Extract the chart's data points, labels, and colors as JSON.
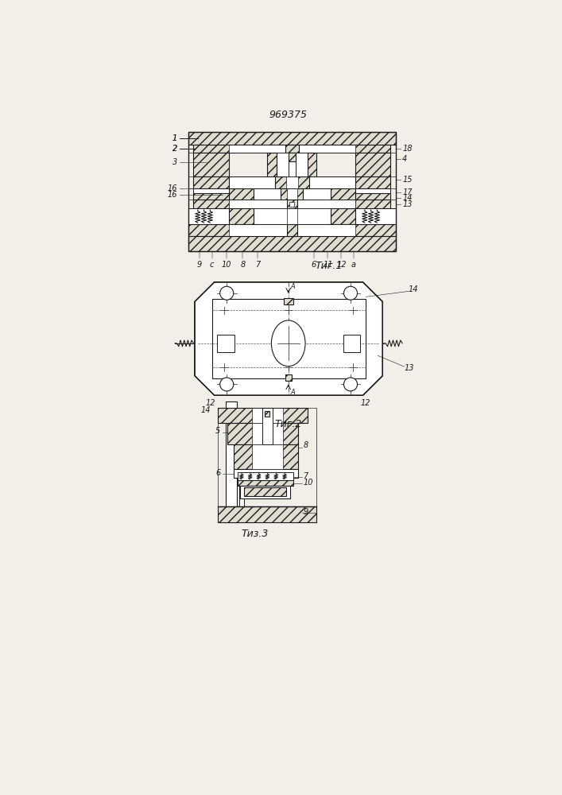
{
  "title": "969375",
  "bg_color": "#f2efe8",
  "lc": "#1a1a1a",
  "fig1_caption": "Τиг.1",
  "fig2_caption": "Τиг.2",
  "fig3_caption": "Τиз.3"
}
